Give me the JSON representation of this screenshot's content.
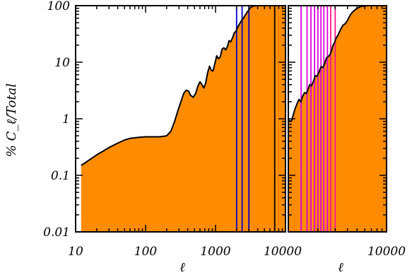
{
  "chart_data": [
    {
      "type": "area",
      "panel": "left",
      "xscale": "log",
      "yscale": "log",
      "xlim": [
        10,
        10000
      ],
      "ylim": [
        0.01,
        100
      ],
      "xlabel": "ℓ",
      "ylabel": "% C_ℓ/Total",
      "xticks": [
        {
          "value": 10,
          "label": "10"
        },
        {
          "value": 100,
          "label": "100"
        },
        {
          "value": 1000,
          "label": "1000"
        },
        {
          "value": 10000,
          "label": "10000"
        }
      ],
      "yticks": [
        {
          "value": 0.01,
          "label": "0.01"
        },
        {
          "value": 0.1,
          "label": "0.1"
        },
        {
          "value": 1,
          "label": "1"
        },
        {
          "value": 10,
          "label": "10"
        },
        {
          "value": 100,
          "label": "100"
        }
      ],
      "fill_color": "#ff8c00",
      "line_color": "#000000",
      "curve": {
        "x": [
          12,
          14,
          17,
          20,
          25,
          30,
          40,
          50,
          60,
          80,
          100,
          130,
          160,
          200,
          230,
          260,
          290,
          320,
          350,
          380,
          410,
          440,
          480,
          520,
          560,
          600,
          640,
          680,
          720,
          770,
          820,
          870,
          920,
          980,
          1040,
          1100,
          1170,
          1240,
          1320,
          1400,
          1480,
          1560,
          1650,
          1750,
          1850,
          1950,
          2050,
          2150,
          2300,
          2500,
          2700,
          2900,
          3100,
          3300,
          3600,
          4000,
          5000,
          6000,
          7000,
          8000,
          9000,
          10000
        ],
        "y": [
          0.15,
          0.17,
          0.2,
          0.23,
          0.27,
          0.31,
          0.37,
          0.42,
          0.45,
          0.47,
          0.48,
          0.48,
          0.48,
          0.5,
          0.6,
          0.9,
          1.4,
          2.0,
          2.8,
          3.2,
          3.1,
          2.6,
          2.4,
          2.8,
          3.8,
          4.5,
          4.0,
          3.5,
          4.2,
          6.5,
          8.5,
          7.2,
          7.0,
          9.5,
          13.0,
          11.5,
          12.5,
          17.0,
          18.0,
          16.5,
          19.0,
          24.0,
          23.0,
          27.0,
          33.0,
          35.0,
          40.0,
          45.0,
          52.0,
          60.0,
          70.0,
          80.0,
          90.0,
          96.0,
          99.0,
          100.0,
          100.0,
          100.0,
          100.0,
          100.0,
          100.0,
          100.0
        ]
      },
      "vlines": [
        {
          "x": 2000,
          "color": "#0000cc"
        },
        {
          "x": 2400,
          "color": "#0000cc"
        },
        {
          "x": 3000,
          "color": "#0000cc"
        },
        {
          "x": 7000,
          "color": "#000000"
        }
      ]
    },
    {
      "type": "area",
      "panel": "right",
      "xscale": "log",
      "yscale": "log",
      "xlim": [
        1000,
        10000
      ],
      "ylim": [
        0.01,
        100
      ],
      "xlabel": "ℓ",
      "xticks": [
        {
          "value": 10000,
          "label": "10000"
        }
      ],
      "fill_color": "#ff8c00",
      "line_color": "#000000",
      "curve": {
        "x": [
          1000,
          1040,
          1080,
          1120,
          1170,
          1220,
          1280,
          1340,
          1400,
          1460,
          1520,
          1580,
          1650,
          1720,
          1800,
          1880,
          1960,
          2050,
          2150,
          2250,
          2350,
          2450,
          2550,
          2650,
          2750,
          2850,
          2950,
          3050,
          3200,
          3400,
          3600,
          3800,
          4000,
          4300,
          4600,
          5000,
          5500,
          6000,
          6500,
          7000,
          8000,
          9000,
          10000
        ],
        "y": [
          1.0,
          0.9,
          0.92,
          1.15,
          1.5,
          1.8,
          2.2,
          2.0,
          2.5,
          2.9,
          2.8,
          3.2,
          4.0,
          3.8,
          4.6,
          5.8,
          5.6,
          6.6,
          8.3,
          8.1,
          9.6,
          12.0,
          12.5,
          13.5,
          16.0,
          20.0,
          22.0,
          26.0,
          30.0,
          38.0,
          45.0,
          48.0,
          55.0,
          70.0,
          80.0,
          90.0,
          97.0,
          99.0,
          100.0,
          100.0,
          100.0,
          100.0,
          100.0
        ]
      },
      "vlines": [
        {
          "x": 1350,
          "color": "#dd00dd"
        },
        {
          "x": 1550,
          "color": "#dd00dd"
        },
        {
          "x": 1700,
          "color": "#dd00dd"
        },
        {
          "x": 1850,
          "color": "#dd00dd"
        },
        {
          "x": 2000,
          "color": "#dd00dd"
        },
        {
          "x": 2150,
          "color": "#dd00dd"
        },
        {
          "x": 2300,
          "color": "#dd00dd"
        },
        {
          "x": 2500,
          "color": "#dd00dd"
        },
        {
          "x": 2700,
          "color": "#ff1493"
        },
        {
          "x": 3000,
          "color": "#ff1493"
        }
      ]
    }
  ]
}
